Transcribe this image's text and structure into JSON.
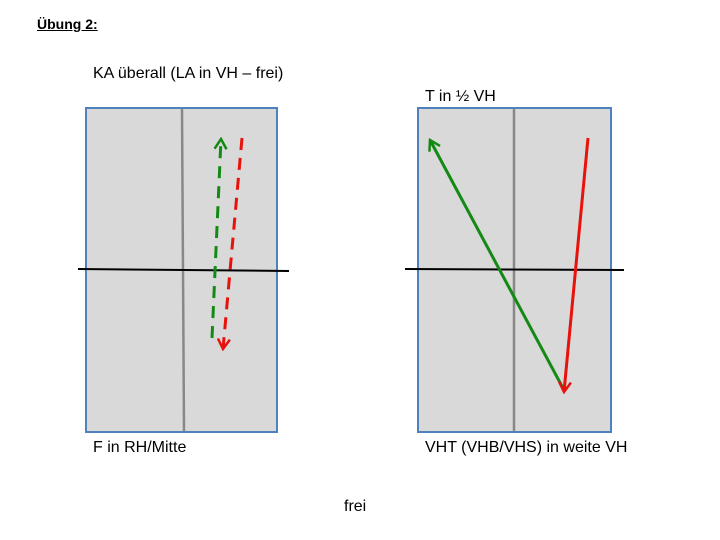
{
  "title": "Übung 2:",
  "labels": {
    "left_top": "KA überall (LA in VH – frei)",
    "right_top": "T in ½ VH",
    "left_bottom": "F in RH/Mitte",
    "right_bottom": "VHT (VHB/VHS) in weite VH",
    "bottom_center": "frei"
  },
  "colors": {
    "field_fill": "#d9d9d9",
    "field_border": "#4f81bd",
    "center_line": "#888888",
    "cross_line": "#000000",
    "green_arrow": "#138a13",
    "red_arrow": "#e8120c"
  }
}
